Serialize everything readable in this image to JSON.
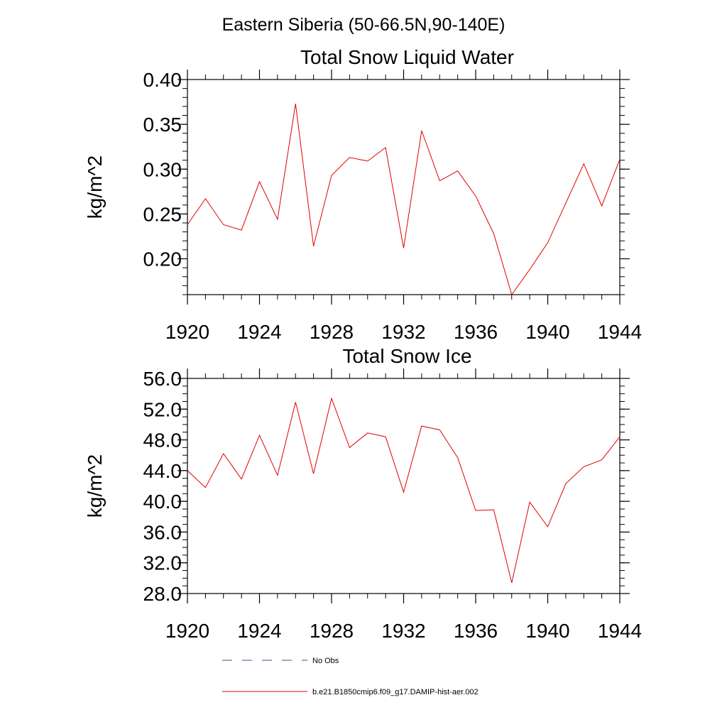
{
  "figure": {
    "supertitle": "Eastern Siberia (50-66.5N,90-140E)"
  },
  "legend": {
    "entries": [
      {
        "label": "No Obs",
        "style": "dashed",
        "color": "#4a4a8a"
      },
      {
        "label": "b.e21.B1850cmip6.f09_g17.DAMIP-hist-aer.002",
        "style": "solid",
        "color": "#e00000"
      }
    ]
  },
  "chart_data": [
    {
      "type": "line",
      "title": "Total Snow Liquid Water",
      "ylabel": "kg/m^2",
      "xlim": [
        1920,
        1944
      ],
      "ylim": [
        0.16,
        0.4
      ],
      "x_ticks": [
        1920,
        1924,
        1928,
        1932,
        1936,
        1940,
        1944
      ],
      "x_tick_labels": [
        "1920",
        "1924",
        "1928",
        "1932",
        "1936",
        "1940",
        "1944"
      ],
      "y_ticks": [
        0.2,
        0.25,
        0.3,
        0.35,
        0.4
      ],
      "y_tick_labels": [
        "0.20",
        "0.25",
        "0.30",
        "0.35",
        "0.40"
      ],
      "y_minor_step": 0.01,
      "x": [
        1920,
        1921,
        1922,
        1923,
        1924,
        1925,
        1926,
        1927,
        1928,
        1929,
        1930,
        1931,
        1932,
        1933,
        1934,
        1935,
        1936,
        1937,
        1938,
        1939,
        1940,
        1941,
        1942,
        1943,
        1944
      ],
      "series": [
        {
          "name": "b.e21.B1850cmip6.f09_g17.DAMIP-hist-aer.002",
          "color": "#e00000",
          "values": [
            0.238,
            0.267,
            0.238,
            0.232,
            0.286,
            0.244,
            0.373,
            0.214,
            0.293,
            0.313,
            0.309,
            0.324,
            0.212,
            0.343,
            0.287,
            0.298,
            0.27,
            0.228,
            0.16,
            0.188,
            0.218,
            0.262,
            0.306,
            0.259,
            0.311
          ]
        }
      ]
    },
    {
      "type": "line",
      "title": "Total Snow Ice",
      "ylabel": "kg/m^2",
      "xlim": [
        1920,
        1944
      ],
      "ylim": [
        28.0,
        56.0
      ],
      "x_ticks": [
        1920,
        1924,
        1928,
        1932,
        1936,
        1940,
        1944
      ],
      "x_tick_labels": [
        "1920",
        "1924",
        "1928",
        "1932",
        "1936",
        "1940",
        "1944"
      ],
      "y_ticks": [
        28.0,
        32.0,
        36.0,
        40.0,
        44.0,
        48.0,
        52.0,
        56.0
      ],
      "y_tick_labels": [
        "28.0",
        "32.0",
        "36.0",
        "40.0",
        "44.0",
        "48.0",
        "52.0",
        "56.0"
      ],
      "y_minor_step": 1.0,
      "x": [
        1920,
        1921,
        1922,
        1923,
        1924,
        1925,
        1926,
        1927,
        1928,
        1929,
        1930,
        1931,
        1932,
        1933,
        1934,
        1935,
        1936,
        1937,
        1938,
        1939,
        1940,
        1941,
        1942,
        1943,
        1944
      ],
      "series": [
        {
          "name": "b.e21.B1850cmip6.f09_g17.DAMIP-hist-aer.002",
          "color": "#e00000",
          "values": [
            44.0,
            41.8,
            46.2,
            42.9,
            48.6,
            43.4,
            52.9,
            43.6,
            53.4,
            47.0,
            48.9,
            48.4,
            41.2,
            49.8,
            49.3,
            45.7,
            38.8,
            38.9,
            29.4,
            39.9,
            36.7,
            42.3,
            44.5,
            45.4,
            48.4
          ]
        }
      ]
    }
  ]
}
